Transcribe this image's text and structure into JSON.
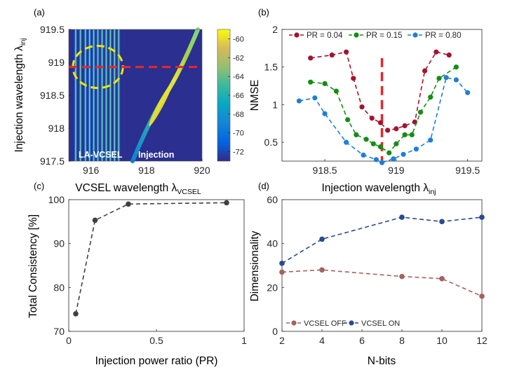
{
  "chart_data": [
    {
      "panel": "(a)",
      "type": "heatmap",
      "xlabel_main": "VCSEL wavelength λ",
      "xlabel_sub": "VCSEL",
      "ylabel_main": "Injection wavelength λ",
      "ylabel_sub": "inj",
      "xlim": [
        915.2,
        920
      ],
      "ylim": [
        917.5,
        919.5
      ],
      "xticks": [
        "916",
        "918",
        "920"
      ],
      "yticks": [
        "917.5",
        "918",
        "918.5",
        "919",
        "919.5"
      ],
      "colorbar": {
        "range": [
          -73,
          -59
        ],
        "ticks": [
          "-60",
          "-62",
          "-64",
          "-66",
          "-68",
          "-70",
          "-72"
        ]
      },
      "vcsel_modes": [
        915.45,
        915.62,
        915.8,
        915.95,
        916.1,
        916.25,
        916.4,
        916.55,
        916.7,
        916.85,
        917.0
      ],
      "injection_line": {
        "x": [
          917.5,
          919.85
        ],
        "y": [
          917.5,
          919.5
        ]
      },
      "dashed_line_y": 918.93,
      "ellipse": {
        "cx": 916.25,
        "cy": 918.93,
        "rx": 0.9,
        "ry": 0.32
      },
      "annotations": [
        "LA-VCSEL",
        "Injection"
      ]
    },
    {
      "panel": "(b)",
      "type": "line",
      "xlabel_main": "Injection wavelength λ",
      "xlabel_sub": "inj",
      "ylabel": "NMSE",
      "xlim": [
        918.2,
        919.6
      ],
      "ylim": [
        0.25,
        2
      ],
      "xticks": [
        "918.5",
        "919",
        "919.5"
      ],
      "yticks": [
        "0.5",
        "1",
        "1.5",
        "2"
      ],
      "dashed_line_x": 918.9,
      "series": [
        {
          "name": "PR = 0.04",
          "color": "#a2142f",
          "x": [
            918.4,
            918.55,
            918.65,
            918.7,
            918.76,
            918.83,
            918.89,
            918.94,
            919.0,
            919.06,
            919.13,
            919.2,
            919.28,
            919.37
          ],
          "y": [
            1.62,
            1.66,
            1.7,
            1.35,
            0.97,
            0.82,
            0.76,
            0.66,
            0.68,
            0.72,
            0.77,
            1.45,
            1.7,
            1.66
          ]
        },
        {
          "name": "PR = 0.15",
          "color": "#138e13",
          "x": [
            918.4,
            918.5,
            918.58,
            918.66,
            918.72,
            918.79,
            918.84,
            918.89,
            918.95,
            919.0,
            919.06,
            919.11,
            919.17,
            919.24,
            919.3,
            919.42
          ],
          "y": [
            1.3,
            1.28,
            1.18,
            0.8,
            0.6,
            0.54,
            0.48,
            0.44,
            0.36,
            0.48,
            0.6,
            0.6,
            0.9,
            1.1,
            1.35,
            1.5
          ]
        },
        {
          "name": "PR = 0.80",
          "color": "#1f7fd4",
          "x": [
            918.32,
            918.43,
            918.5,
            918.65,
            918.77,
            918.86,
            918.9,
            918.98,
            919.05,
            919.14,
            919.24,
            919.35,
            919.42,
            919.5
          ],
          "y": [
            1.05,
            1.09,
            0.88,
            0.5,
            0.33,
            0.27,
            0.23,
            0.28,
            0.34,
            0.41,
            0.53,
            1.36,
            1.33,
            1.16
          ]
        }
      ]
    },
    {
      "panel": "(c)",
      "type": "line",
      "xlabel": "Injection power ratio (PR)",
      "ylabel": "Total Consistency [%]",
      "xlim": [
        0,
        1
      ],
      "ylim": [
        70,
        100
      ],
      "xticks": [
        "0",
        "0.5",
        "1"
      ],
      "yticks": [
        "70",
        "80",
        "90",
        "100"
      ],
      "series": [
        {
          "name": "",
          "color": "#404040",
          "x": [
            0.04,
            0.15,
            0.34,
            0.9
          ],
          "y": [
            74,
            95.3,
            99,
            99.3
          ]
        }
      ]
    },
    {
      "panel": "(d)",
      "type": "line",
      "xlabel": "N-bits",
      "ylabel": "Dimensionality",
      "xlim": [
        2,
        12
      ],
      "ylim": [
        0,
        60
      ],
      "xticks": [
        "2",
        "4",
        "6",
        "8",
        "10",
        "12"
      ],
      "yticks": [
        "0",
        "20",
        "40",
        "60"
      ],
      "series": [
        {
          "name": "VCSEL OFF",
          "color": "#a5625e",
          "x": [
            2,
            4,
            8,
            10,
            12
          ],
          "y": [
            27,
            28,
            25,
            24,
            16
          ]
        },
        {
          "name": "VCSEL ON",
          "color": "#2a4b8d",
          "x": [
            2,
            4,
            8,
            10,
            12
          ],
          "y": [
            31,
            42,
            52,
            50,
            52
          ]
        }
      ]
    }
  ]
}
